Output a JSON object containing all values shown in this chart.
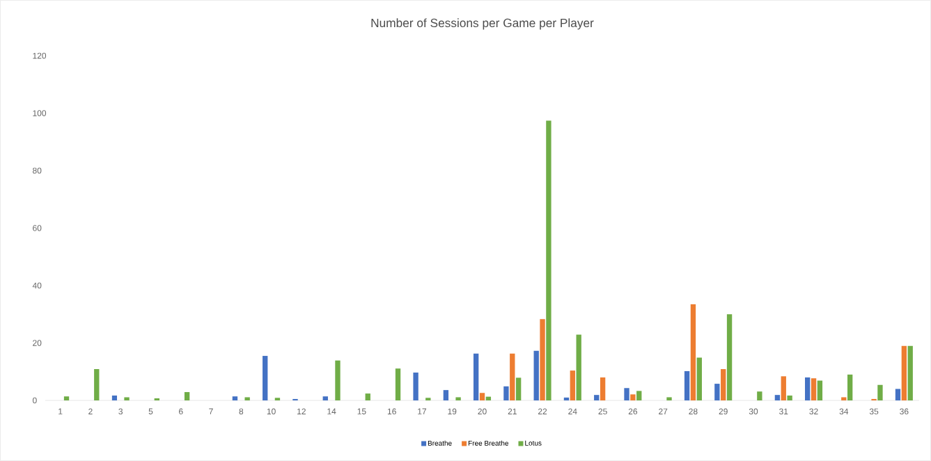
{
  "chart_data": {
    "type": "bar",
    "title": "Number of Sessions per Game per Player",
    "categories": [
      "1",
      "2",
      "3",
      "5",
      "6",
      "7",
      "8",
      "10",
      "12",
      "14",
      "15",
      "16",
      "17",
      "19",
      "20",
      "21",
      "22",
      "24",
      "25",
      "26",
      "27",
      "28",
      "29",
      "30",
      "31",
      "32",
      "34",
      "35",
      "36"
    ],
    "series": [
      {
        "name": "Breathe",
        "color": "#4472c4",
        "values": [
          null,
          null,
          1.7,
          null,
          null,
          null,
          1.4,
          15.5,
          0.5,
          1.4,
          null,
          null,
          9.7,
          3.6,
          16.3,
          4.9,
          17.3,
          1,
          1.9,
          4.3,
          null,
          10.2,
          5.8,
          null,
          1.9,
          8,
          null,
          null,
          4
        ]
      },
      {
        "name": "Free Breathe",
        "color": "#ed7d31",
        "values": [
          null,
          null,
          null,
          null,
          null,
          null,
          null,
          null,
          null,
          null,
          null,
          null,
          null,
          null,
          2.6,
          16.3,
          28.3,
          10.4,
          8,
          2.1,
          null,
          33.5,
          10.9,
          null,
          8.4,
          7.7,
          1.1,
          0.5,
          19
        ]
      },
      {
        "name": "Lotus",
        "color": "#70ad47",
        "values": [
          1.4,
          10.9,
          1.1,
          0.7,
          2.9,
          null,
          1.1,
          0.9,
          null,
          13.9,
          2.4,
          11.1,
          0.9,
          1.1,
          1.3,
          7.9,
          97.4,
          22.9,
          null,
          3.3,
          1.1,
          14.9,
          30,
          3.1,
          1.7,
          6.9,
          9,
          5.4,
          19
        ]
      }
    ],
    "ylim": [
      0,
      120
    ],
    "yticks": [
      0,
      20,
      40,
      60,
      80,
      100,
      120
    ],
    "legend": "bottom"
  }
}
